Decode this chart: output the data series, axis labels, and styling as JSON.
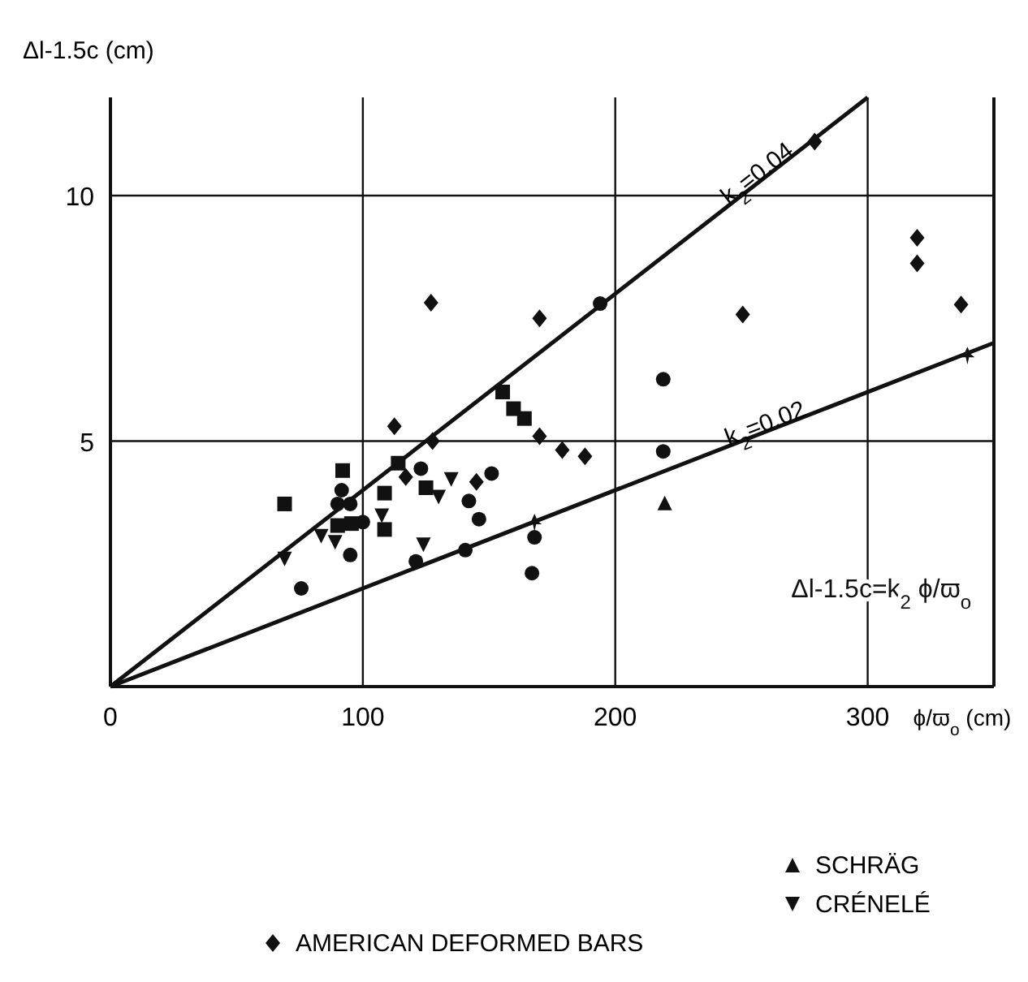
{
  "chart_data": {
    "type": "scatter",
    "xlabel": "ϕ/ϖ$_{o}$ (cm)",
    "ylabel": "Δl-1.5c (cm)",
    "xlim": [
      0,
      350
    ],
    "ylim": [
      0,
      12
    ],
    "xticks": [
      0,
      100,
      200,
      300
    ],
    "yticks": [
      5,
      10
    ],
    "grid": true,
    "legend": "bottom",
    "annotations": [
      {
        "text": "k$_{2}$=0.04",
        "x": 245,
        "y": 9.8
      },
      {
        "text": "k$_{2}$=0.02",
        "x": 245,
        "y": 4.9
      },
      "Δl-1.5c=k$_{2}$ ϕ/ϖ$_{o}$"
    ],
    "series": [
      {
        "color": "#111111",
        "marker": "circle",
        "x": [
          90,
          95,
          168,
          194,
          219
        ],
        "values": [
          3.72,
          3.72,
          3.04,
          7.8,
          6.26
        ]
      },
      {
        "color": "#111111",
        "marker": "circle",
        "x": [
          91.6,
          100,
          167,
          219
        ],
        "values": [
          4.0,
          3.35,
          2.31,
          4.79
        ]
      },
      {
        "color": "#111111",
        "marker": "circle",
        "x": [
          75.6,
          95,
          121,
          123,
          140.6,
          142,
          146,
          151
        ],
        "values": [
          2.0,
          2.68,
          2.55,
          4.44,
          2.78,
          3.78,
          3.41,
          4.34
        ]
      },
      {
        "color": "#111111",
        "marker": "diamond",
        "x": [
          127.6,
          170,
          279,
          337
        ],
        "values": [
          5.0,
          7.5,
          11.1,
          7.78
        ]
      },
      {
        "color": "#111111",
        "marker": "square",
        "x": [
          69,
          92,
          90,
          95.5,
          108.6,
          108.6,
          114,
          125,
          155.4,
          159.7,
          164
        ],
        "values": [
          3.72,
          4.4,
          3.28,
          3.32,
          3.94,
          3.2,
          4.55,
          4.05,
          6.0,
          5.66,
          5.46
        ]
      },
      {
        "name": "AMERICAN DEFORMED BARS",
        "color": "#111111",
        "marker": "diamond",
        "x": [
          127,
          112.5,
          117,
          145,
          170,
          179,
          188,
          250.5,
          319.6,
          319.6
        ],
        "values": [
          7.82,
          5.3,
          4.27,
          4.17,
          5.1,
          4.82,
          4.69,
          7.58,
          9.14,
          8.62
        ]
      },
      {
        "name": "SCHRÄG",
        "color": "#111111",
        "marker": "triangle",
        "x": [
          219.6
        ],
        "values": [
          3.74
        ]
      },
      {
        "name": "CRÉNELÉ",
        "color": "#111111",
        "marker": "triangle-down",
        "x": [
          69,
          83.5,
          89,
          107.5,
          124,
          130,
          135
        ],
        "values": [
          2.6,
          3.06,
          2.94,
          3.48,
          2.89,
          3.86,
          4.22
        ]
      },
      {
        "color": "#111111",
        "marker": "cross",
        "x": [
          168,
          339.5
        ],
        "values": [
          3.34,
          6.74
        ]
      },
      {
        "type": "line",
        "color": "#111111",
        "marker": "none",
        "x": [
          0,
          300
        ],
        "values": [
          0,
          12
        ]
      },
      {
        "type": "line",
        "color": "#111111",
        "marker": "none",
        "x": [
          0,
          350
        ],
        "values": [
          0,
          7
        ]
      }
    ]
  }
}
